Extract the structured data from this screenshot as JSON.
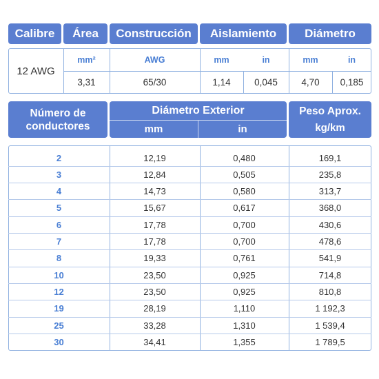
{
  "spec": {
    "headers": [
      "Calibre",
      "Área",
      "Construcción",
      "Aislamiento",
      "Diámetro"
    ],
    "calibre": "12 AWG",
    "units": {
      "area": "mm²",
      "construccion": "AWG",
      "aisl_mm": "mm",
      "aisl_in": "in",
      "diam_mm": "mm",
      "diam_in": "in"
    },
    "values": {
      "area": "3,31",
      "construccion": "65/30",
      "aisl_mm": "1,14",
      "aisl_in": "0,045",
      "diam_mm": "4,70",
      "diam_in": "0,185"
    }
  },
  "table": {
    "headers": {
      "conductores": "Número de conductores",
      "diametro_ext": "Diámetro Exterior",
      "mm": "mm",
      "in": "in",
      "peso": "Peso Aprox.",
      "peso_unit": "kg/km"
    },
    "rows": [
      {
        "n": "2",
        "mm": "12,19",
        "in": "0,480",
        "peso": "169,1"
      },
      {
        "n": "3",
        "mm": "12,84",
        "in": "0,505",
        "peso": "235,8"
      },
      {
        "n": "4",
        "mm": "14,73",
        "in": "0,580",
        "peso": "313,7"
      },
      {
        "n": "5",
        "mm": "15,67",
        "in": "0,617",
        "peso": "368,0"
      },
      {
        "n": "6",
        "mm": "17,78",
        "in": "0,700",
        "peso": "430,6"
      },
      {
        "n": "7",
        "mm": "17,78",
        "in": "0,700",
        "peso": "478,6"
      },
      {
        "n": "8",
        "mm": "19,33",
        "in": "0,761",
        "peso": "541,9"
      },
      {
        "n": "10",
        "mm": "23,50",
        "in": "0,925",
        "peso": "714,8"
      },
      {
        "n": "12",
        "mm": "23,50",
        "in": "0,925",
        "peso": "810,8"
      },
      {
        "n": "19",
        "mm": "28,19",
        "in": "1,110",
        "peso": "1 192,3"
      },
      {
        "n": "25",
        "mm": "33,28",
        "in": "1,310",
        "peso": "1 539,4"
      },
      {
        "n": "30",
        "mm": "34,41",
        "in": "1,355",
        "peso": "1 789,5"
      }
    ]
  },
  "colors": {
    "header_bg": "#5a7ed0",
    "header_text": "#ffffff",
    "accent_text": "#4a7fd4",
    "border": "#8fb0e0"
  }
}
